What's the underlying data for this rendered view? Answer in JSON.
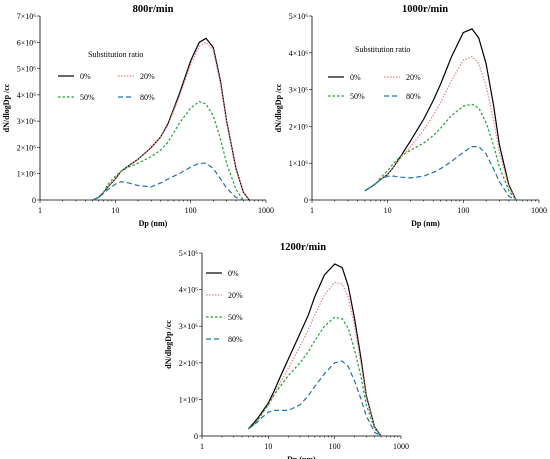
{
  "colors": {
    "s0": "#000000",
    "s20": "#f08080",
    "s50": "#1aa533",
    "s80": "#2170b8"
  },
  "chart_data": [
    {
      "type": "line",
      "title": "800r/min",
      "xlabel": "Dp (nm)",
      "ylabel": "dN/dlogDp /cc",
      "xscale": "log",
      "xlim": [
        1,
        1000
      ],
      "ylim": [
        0,
        7000000
      ],
      "xticks": [
        "1",
        "10",
        "100",
        "1000"
      ],
      "yticks": [
        "0",
        "1×10⁶",
        "2×10⁶",
        "3×10⁶",
        "4×10⁶",
        "5×10⁶",
        "6×10⁶",
        "7×10⁶"
      ],
      "legend_title": "Substitution ratio",
      "legend_layout": "two-column",
      "series": [
        {
          "name": "0%",
          "style": "solid",
          "color_key": "s0",
          "x": [
            5,
            6,
            7,
            8,
            10,
            12,
            15,
            20,
            30,
            40,
            50,
            70,
            100,
            130,
            160,
            200,
            250,
            300,
            400,
            500,
            600
          ],
          "y": [
            0,
            100000,
            300000,
            500000,
            800000,
            1100000,
            1300000,
            1550000,
            2000000,
            2400000,
            2900000,
            4000000,
            5300000,
            6000000,
            6150000,
            5800000,
            4500000,
            3000000,
            1200000,
            300000,
            0
          ]
        },
        {
          "name": "20%",
          "style": "dotted",
          "color_key": "s20",
          "x": [
            5,
            6,
            7,
            8,
            10,
            12,
            15,
            20,
            30,
            40,
            50,
            70,
            100,
            130,
            160,
            200,
            250,
            300,
            400,
            500,
            600
          ],
          "y": [
            0,
            100000,
            300000,
            500000,
            800000,
            1100000,
            1300000,
            1550000,
            2000000,
            2400000,
            2850000,
            3900000,
            5150000,
            5850000,
            6000000,
            5700000,
            4400000,
            2950000,
            1150000,
            300000,
            0
          ]
        },
        {
          "name": "50%",
          "style": "dashed-fine",
          "color_key": "s50",
          "x": [
            5,
            6,
            7,
            8,
            10,
            12,
            15,
            20,
            30,
            40,
            50,
            70,
            100,
            130,
            160,
            200,
            250,
            300,
            400,
            500
          ],
          "y": [
            0,
            100000,
            300000,
            600000,
            900000,
            1100000,
            1250000,
            1400000,
            1650000,
            1900000,
            2200000,
            2900000,
            3500000,
            3750000,
            3650000,
            3200000,
            2300000,
            1400000,
            400000,
            0
          ]
        },
        {
          "name": "80%",
          "style": "dashed",
          "color_key": "s80",
          "x": [
            5,
            6,
            7,
            8,
            10,
            12,
            15,
            20,
            30,
            40,
            50,
            70,
            100,
            130,
            160,
            200,
            250,
            300,
            400,
            500
          ],
          "y": [
            0,
            100000,
            250000,
            400000,
            600000,
            700000,
            650000,
            550000,
            500000,
            650000,
            800000,
            1000000,
            1250000,
            1400000,
            1400000,
            1200000,
            800000,
            450000,
            100000,
            0
          ]
        }
      ]
    },
    {
      "type": "line",
      "title": "1000r/min",
      "xlabel": "Dp (nm)",
      "ylabel": "dN/dlogDp /cc",
      "xscale": "log",
      "xlim": [
        1,
        1000
      ],
      "ylim": [
        0,
        5000000
      ],
      "xticks": [
        "1",
        "10",
        "100",
        "1000"
      ],
      "yticks": [
        "0",
        "1×10⁶",
        "2×10⁶",
        "3×10⁶",
        "4×10⁶",
        "5×10⁶"
      ],
      "legend_title": "Substitution ratio",
      "legend_layout": "two-column",
      "series": [
        {
          "name": "0%",
          "style": "solid",
          "color_key": "s0",
          "x": [
            5,
            6,
            7,
            8,
            10,
            12,
            15,
            20,
            30,
            40,
            50,
            70,
            100,
            130,
            160,
            200,
            250,
            300,
            400,
            500
          ],
          "y": [
            250000,
            350000,
            450000,
            550000,
            700000,
            900000,
            1200000,
            1600000,
            2200000,
            2700000,
            3150000,
            3900000,
            4550000,
            4650000,
            4400000,
            3700000,
            2600000,
            1500000,
            400000,
            0
          ]
        },
        {
          "name": "20%",
          "style": "dotted",
          "color_key": "s20",
          "x": [
            5,
            6,
            7,
            8,
            10,
            12,
            15,
            20,
            30,
            40,
            50,
            70,
            100,
            130,
            160,
            200,
            250,
            300,
            400,
            500
          ],
          "y": [
            250000,
            350000,
            450000,
            550000,
            700000,
            900000,
            1150000,
            1450000,
            1900000,
            2300000,
            2650000,
            3250000,
            3800000,
            3900000,
            3700000,
            3100000,
            2200000,
            1300000,
            350000,
            0
          ]
        },
        {
          "name": "50%",
          "style": "dashed-fine",
          "color_key": "s50",
          "x": [
            5,
            6,
            7,
            8,
            10,
            12,
            15,
            20,
            30,
            40,
            50,
            70,
            100,
            130,
            160,
            200,
            250,
            300,
            400,
            500
          ],
          "y": [
            250000,
            350000,
            450000,
            600000,
            800000,
            1000000,
            1200000,
            1350000,
            1550000,
            1750000,
            1950000,
            2300000,
            2550000,
            2600000,
            2500000,
            2100000,
            1500000,
            900000,
            250000,
            0
          ]
        },
        {
          "name": "80%",
          "style": "dashed",
          "color_key": "s80",
          "x": [
            5,
            6,
            7,
            8,
            10,
            12,
            15,
            20,
            30,
            40,
            50,
            70,
            100,
            130,
            160,
            200,
            250,
            300,
            400,
            500
          ],
          "y": [
            250000,
            350000,
            450000,
            550000,
            650000,
            650000,
            620000,
            600000,
            650000,
            750000,
            850000,
            1050000,
            1300000,
            1450000,
            1450000,
            1250000,
            850000,
            500000,
            100000,
            0
          ]
        }
      ]
    },
    {
      "type": "line",
      "title": "1200r/min",
      "xlabel": "Dp (nm)",
      "ylabel": "dN/dlogDp /cc",
      "xscale": "log",
      "xlim": [
        1,
        1000
      ],
      "ylim": [
        0,
        5000000
      ],
      "xticks": [
        "1",
        "10",
        "100",
        "1000"
      ],
      "yticks": [
        "0",
        "1×10⁶",
        "2×10⁶",
        "3×10⁶",
        "4×10⁶",
        "5×10⁶"
      ],
      "legend_title": "",
      "legend_layout": "one-column",
      "series": [
        {
          "name": "0%",
          "style": "solid",
          "color_key": "s0",
          "x": [
            5,
            6,
            7,
            8,
            10,
            12,
            15,
            20,
            30,
            40,
            50,
            70,
            100,
            130,
            160,
            200,
            250,
            300,
            400,
            500
          ],
          "y": [
            200000,
            350000,
            500000,
            650000,
            900000,
            1200000,
            1600000,
            2100000,
            2800000,
            3300000,
            3800000,
            4400000,
            4700000,
            4600000,
            4100000,
            3200000,
            2100000,
            1100000,
            250000,
            0
          ]
        },
        {
          "name": "20%",
          "style": "dotted",
          "color_key": "s20",
          "x": [
            5,
            6,
            7,
            8,
            10,
            12,
            15,
            20,
            30,
            40,
            50,
            70,
            100,
            130,
            160,
            200,
            250,
            300,
            400,
            500
          ],
          "y": [
            200000,
            300000,
            450000,
            600000,
            850000,
            1100000,
            1450000,
            1850000,
            2450000,
            2900000,
            3300000,
            3850000,
            4200000,
            4150000,
            3800000,
            3000000,
            1950000,
            1050000,
            250000,
            0
          ]
        },
        {
          "name": "50%",
          "style": "dashed-fine",
          "color_key": "s50",
          "x": [
            5,
            6,
            7,
            8,
            10,
            12,
            15,
            20,
            30,
            40,
            50,
            70,
            100,
            130,
            160,
            200,
            250,
            300,
            400,
            500
          ],
          "y": [
            200000,
            300000,
            450000,
            600000,
            850000,
            1100000,
            1350000,
            1650000,
            2000000,
            2300000,
            2600000,
            3000000,
            3250000,
            3200000,
            2950000,
            2350000,
            1600000,
            850000,
            200000,
            0
          ]
        },
        {
          "name": "80%",
          "style": "dashed",
          "color_key": "s80",
          "x": [
            5,
            6,
            7,
            8,
            10,
            12,
            15,
            20,
            30,
            40,
            50,
            70,
            100,
            130,
            160,
            200,
            250,
            300,
            400,
            500
          ],
          "y": [
            200000,
            300000,
            400000,
            500000,
            650000,
            700000,
            700000,
            700000,
            850000,
            1100000,
            1350000,
            1700000,
            2000000,
            2050000,
            1900000,
            1500000,
            1000000,
            550000,
            100000,
            0
          ]
        }
      ]
    }
  ]
}
